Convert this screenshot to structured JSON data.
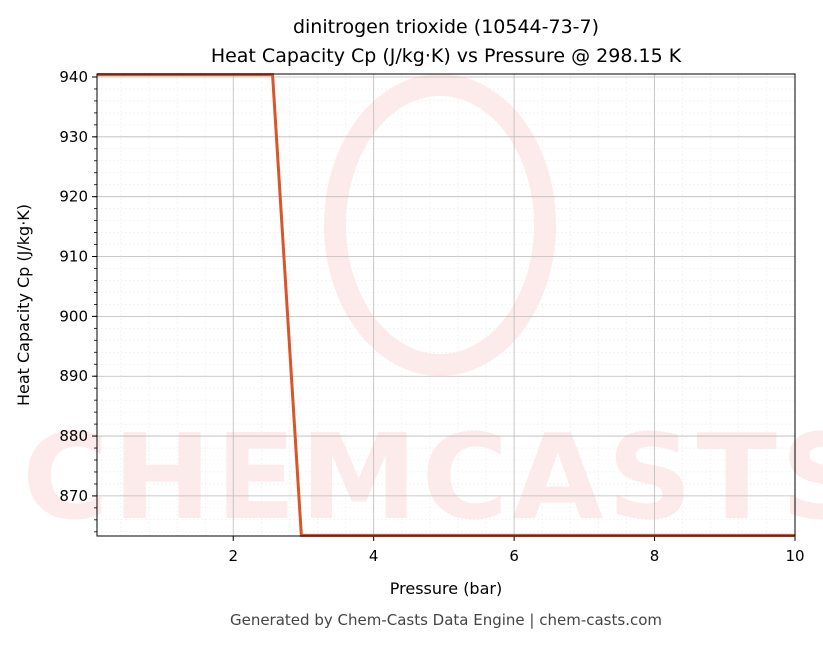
{
  "chart_data": {
    "type": "line",
    "title": [
      "dinitrogen trioxide (10544-73-7)",
      "Heat Capacity Cp (J/kg·K) vs Pressure @ 298.15 K"
    ],
    "x_label": "Pressure (bar)",
    "y_label": "Heat Capacity Cp (J/kg·K)",
    "x": [
      0.06,
      2.56,
      2.97,
      10
    ],
    "series": [
      {
        "name": "Cp",
        "color": "#d9552b",
        "values": [
          940.4,
          940.4,
          863.4,
          863.4
        ]
      }
    ],
    "xlim": [
      0.06,
      10
    ],
    "ylim": [
      863.3,
      940.5
    ],
    "xticks": [
      2,
      4,
      6,
      8,
      10
    ],
    "yticks": [
      870,
      880,
      890,
      900,
      910,
      920,
      930,
      940
    ],
    "grid": true,
    "minor_grid": true,
    "watermark": "CHEMCASTS",
    "footer": "Generated by Chem-Casts Data Engine | chem-casts.com"
  }
}
